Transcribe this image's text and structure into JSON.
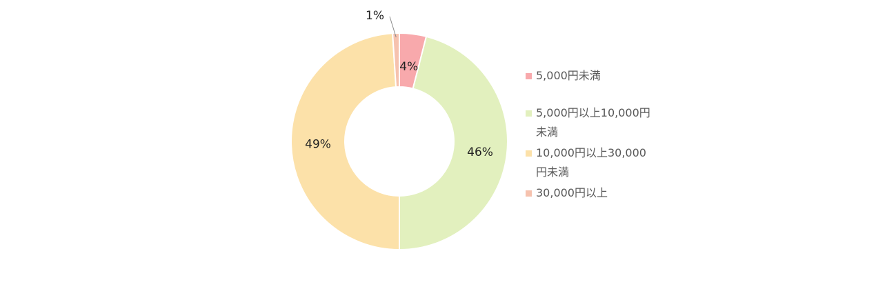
{
  "chart_data": {
    "type": "pie",
    "donut": true,
    "title": "",
    "categories": [
      "5,000円未満",
      "5,000円以上10,000円未満",
      "10,000円以上30,000円未満",
      "30,000円以上"
    ],
    "values": [
      4,
      46,
      49,
      1
    ],
    "data_labels": [
      "4%",
      "46%",
      "49%",
      "1%"
    ],
    "colors": [
      "#F8A9AC",
      "#E2F0BE",
      "#FCE1A9",
      "#F6C2AE"
    ],
    "start_angle_deg": 0,
    "direction": "clockwise",
    "legend_position": "right"
  }
}
